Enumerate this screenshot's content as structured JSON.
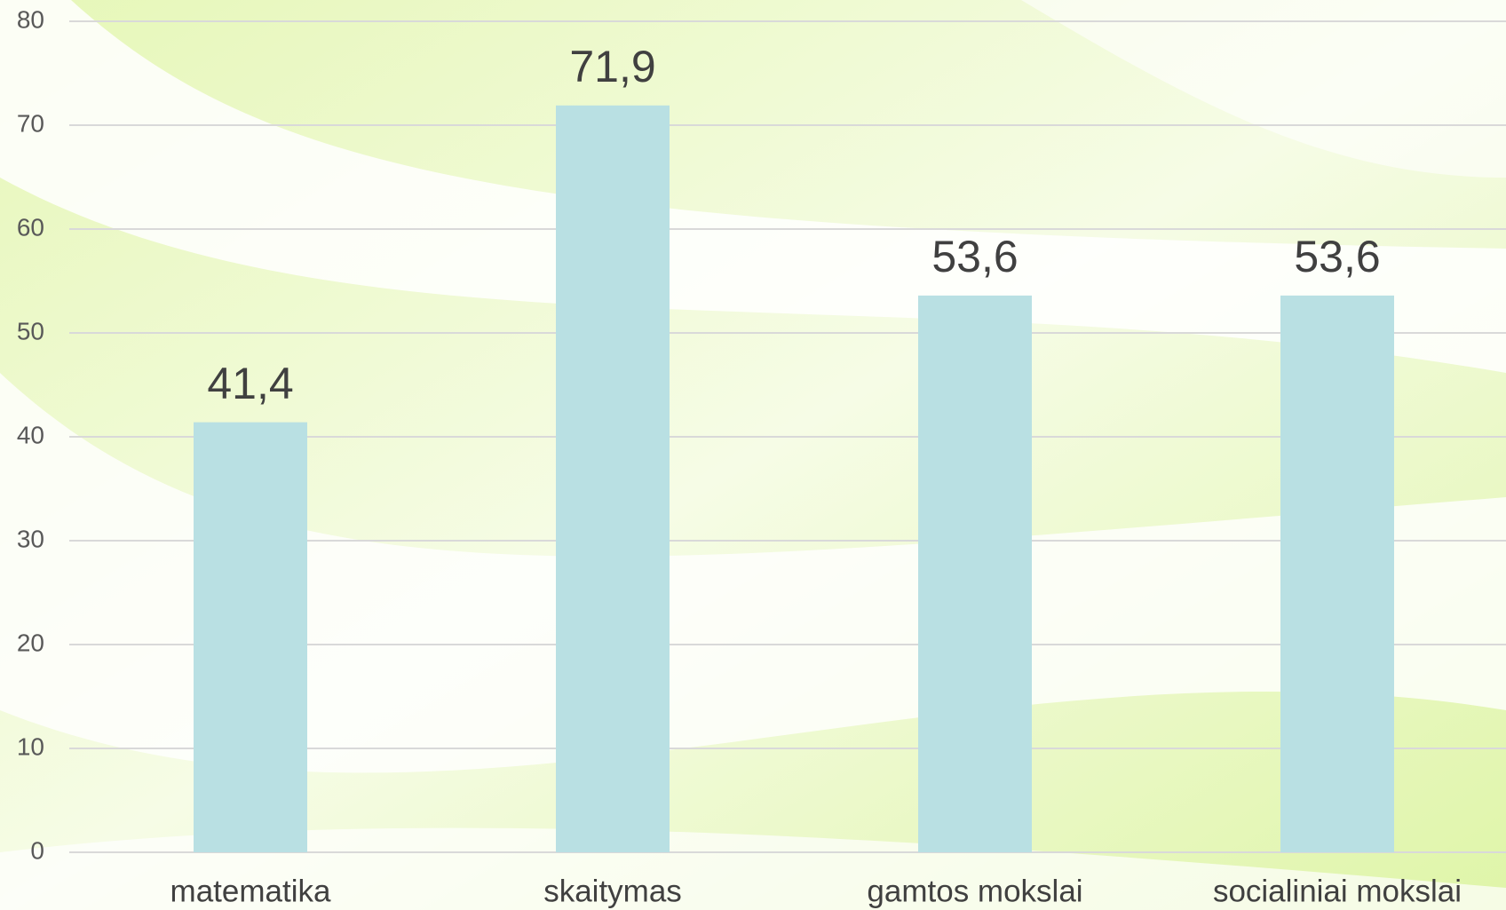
{
  "chart_data": {
    "type": "bar",
    "categories": [
      "matematika",
      "skaitymas",
      "gamtos mokslai",
      "socialiniai mokslai"
    ],
    "values": [
      41.4,
      71.9,
      53.6,
      53.6
    ],
    "value_labels": [
      "41,4",
      "71,9",
      "53,6",
      "53,6"
    ],
    "color": "#b9e0e3",
    "ylim": [
      0,
      80
    ],
    "yticks": [
      0,
      10,
      20,
      30,
      40,
      50,
      60,
      70,
      80
    ],
    "grid": true
  }
}
